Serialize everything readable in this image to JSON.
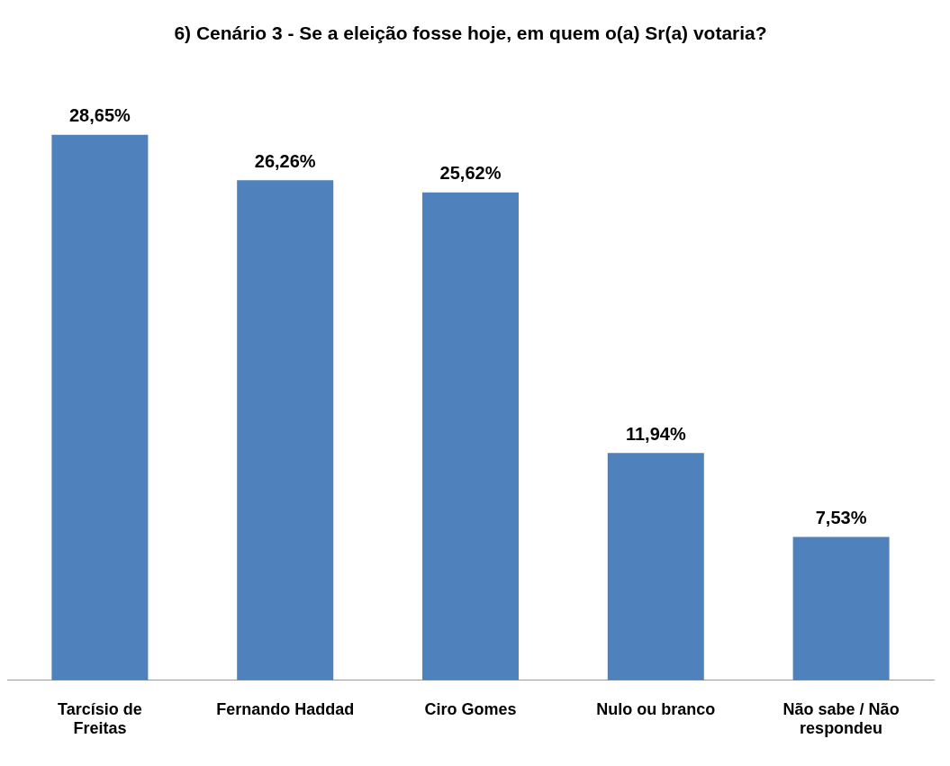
{
  "chart_data": {
    "type": "bar",
    "title": "6) Cenário 3 - Se a eleição fosse hoje, em quem o(a) Sr(a) votaria?",
    "categories": [
      "Tarcísio de Freitas",
      "Fernando Haddad",
      "Ciro Gomes",
      "Nulo ou branco",
      "Não sabe / Não respondeu"
    ],
    "values": [
      28.65,
      26.26,
      25.62,
      11.94,
      7.53
    ],
    "value_labels": [
      "28,65%",
      "26,26%",
      "25,62%",
      "11,94%",
      "7,53%"
    ],
    "color": "#4f81bd",
    "grid": false,
    "legend": false
  }
}
